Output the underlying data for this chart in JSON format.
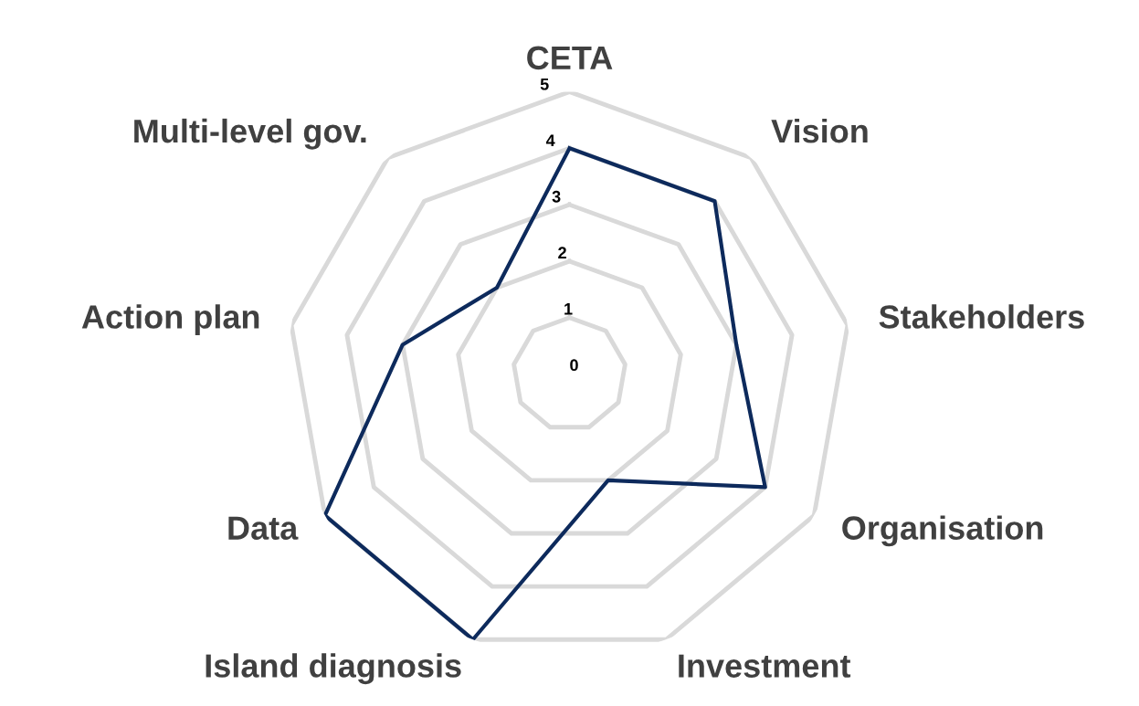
{
  "chart_data": {
    "type": "radar",
    "categories": [
      "CETA",
      "Vision",
      "Stakeholders",
      "Organisation",
      "Investment",
      "Island diagnosis",
      "Data",
      "Action plan",
      "Multi-level gov."
    ],
    "series": [
      {
        "color": "#0d2a5c",
        "values": [
          4,
          4,
          3,
          4,
          2,
          5,
          5,
          3,
          2
        ]
      }
    ],
    "ylim": [
      0,
      5
    ],
    "yticks": [
      0,
      1,
      2,
      3,
      4,
      5
    ],
    "grid": true,
    "marker": "none",
    "line_style": "solid"
  }
}
